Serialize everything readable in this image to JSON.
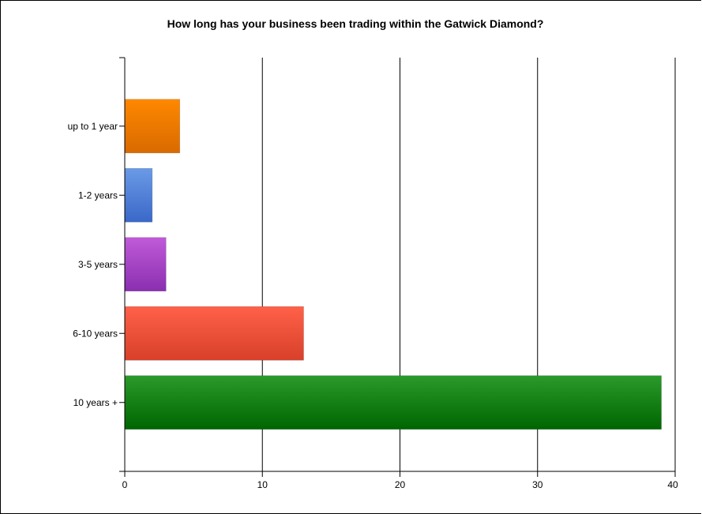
{
  "chart_data": {
    "type": "bar",
    "orientation": "horizontal",
    "title": "How long has your business been trading within the Gatwick Diamond?",
    "xlabel": "",
    "ylabel": "",
    "categories": [
      "up to 1 year",
      "1-2 years",
      "3-5 years",
      "6-10 years",
      "10 years +"
    ],
    "values": [
      4,
      2,
      3,
      13,
      39
    ],
    "xlim": [
      0,
      40
    ],
    "xticks": [
      0,
      10,
      20,
      30,
      40
    ],
    "grid": "vertical",
    "colors": [
      [
        "#ff8800",
        "#d96a00"
      ],
      [
        "#6a9ae6",
        "#3a68c8"
      ],
      [
        "#c05ad8",
        "#8a2fb0"
      ],
      [
        "#ff6148",
        "#d8402a"
      ],
      [
        "#2a9a2a",
        "#006600"
      ]
    ]
  }
}
